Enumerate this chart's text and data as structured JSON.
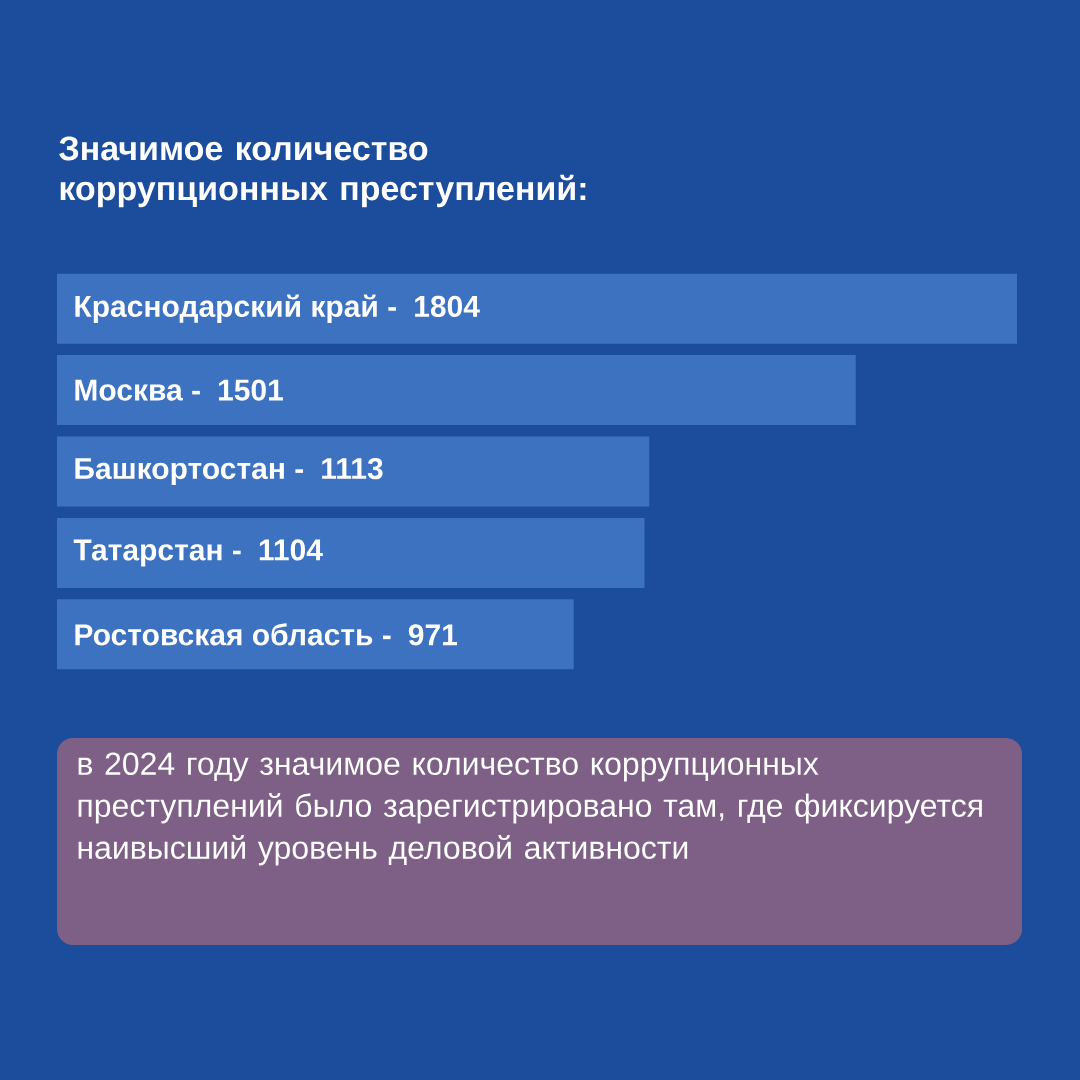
{
  "chart_data": {
    "type": "bar",
    "orientation": "horizontal",
    "title": "Значимое количество коррупционных преступлений:",
    "categories": [
      "Краснодарский край -",
      "Москва -",
      "Башкортостан -",
      "Татарстан -",
      "Ростовская область -"
    ],
    "values": [
      1804,
      1501,
      1113,
      1104,
      971
    ],
    "color": "#3d72c0",
    "data_labels": true,
    "annotations": [
      "в 2024 году значимое количество коррупционных преступлений было зарегистрировано там, где фиксируется наивысший уровень деловой активности"
    ]
  }
}
